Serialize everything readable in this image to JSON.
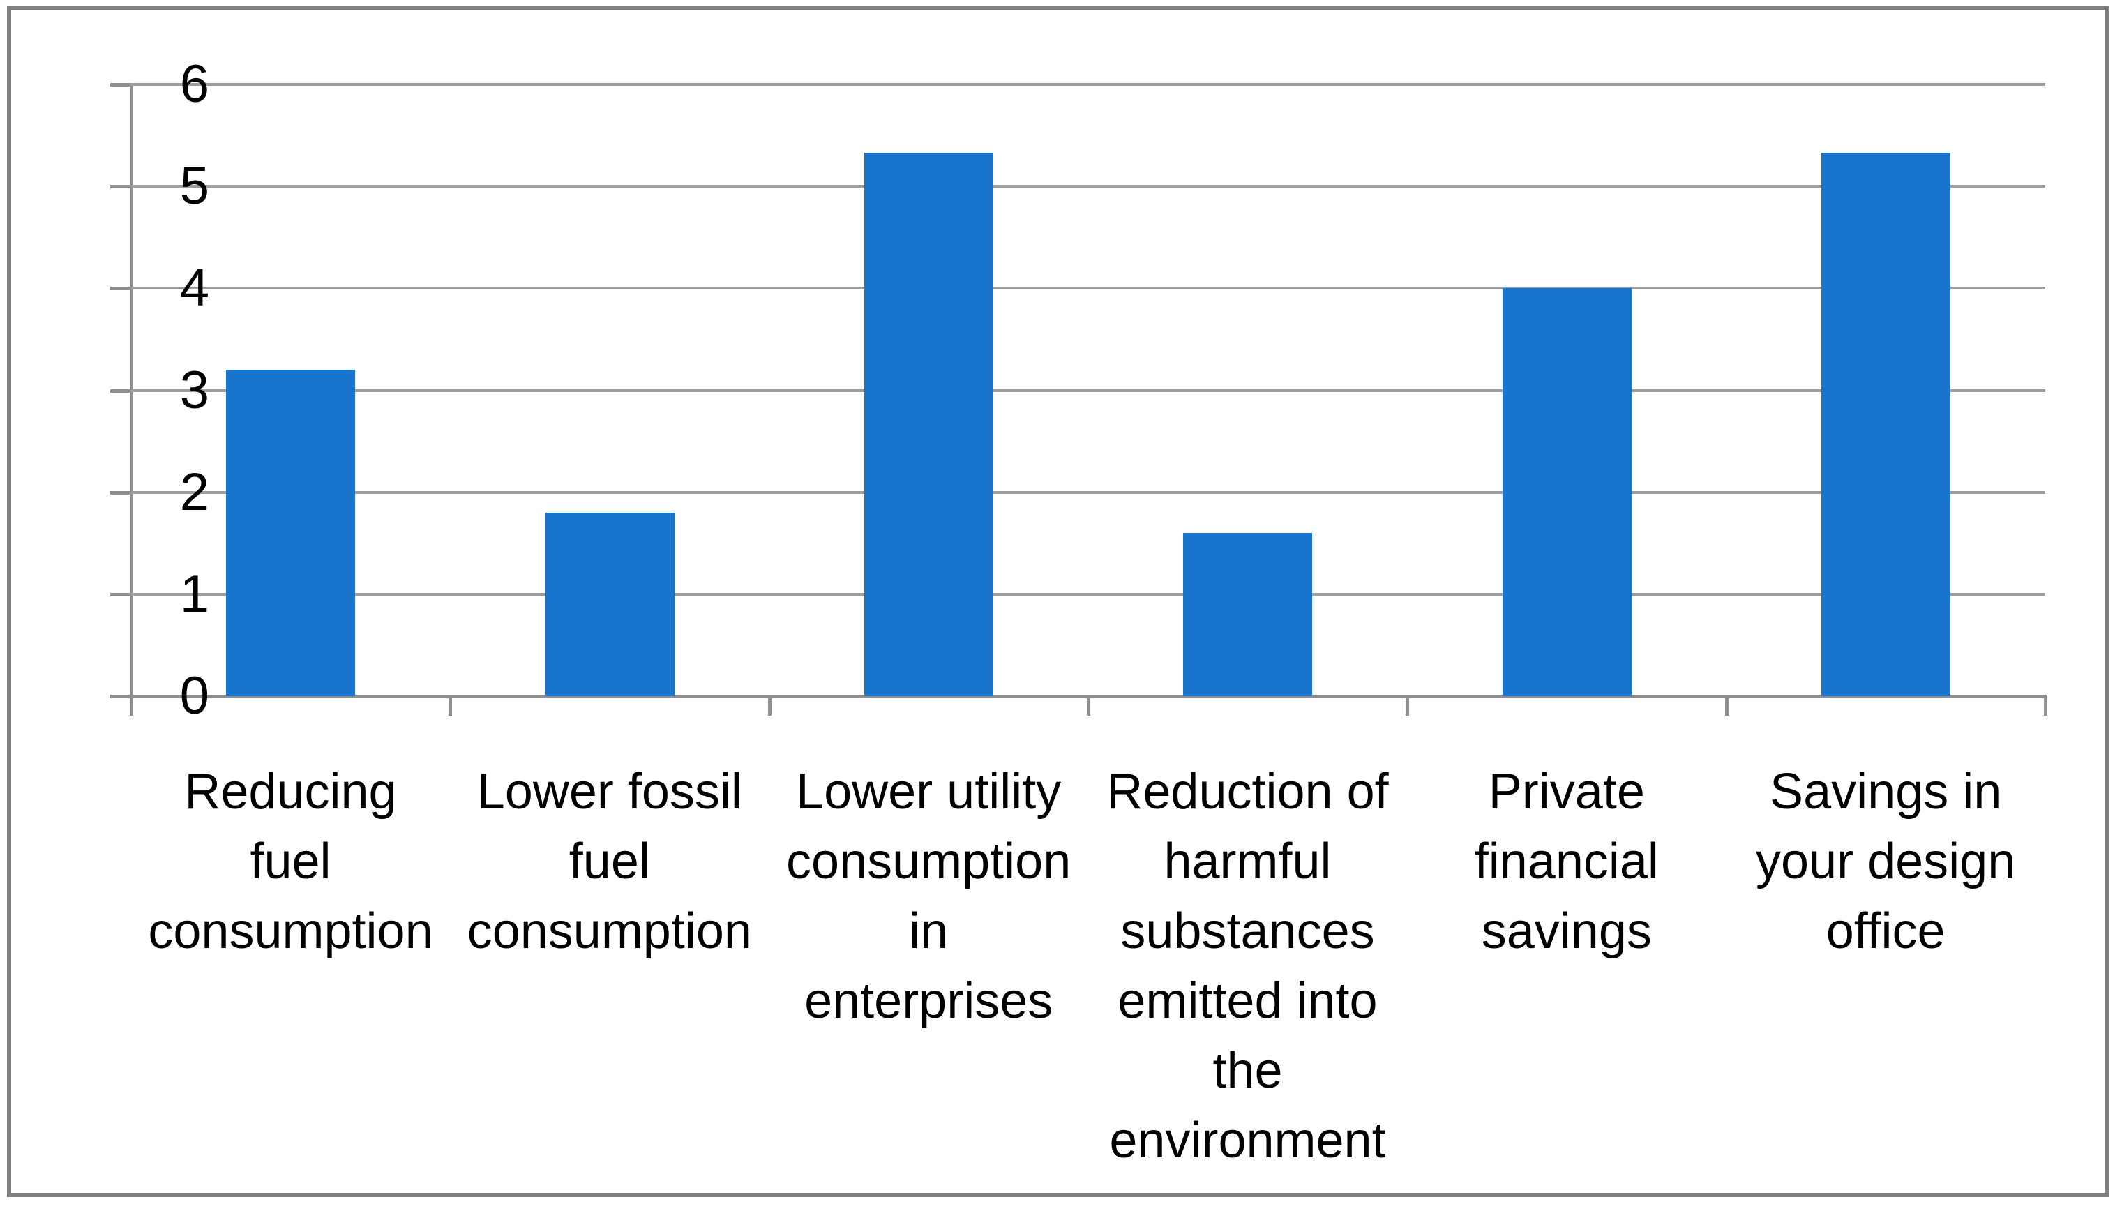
{
  "chart_data": {
    "type": "bar",
    "title": "",
    "xlabel": "",
    "ylabel": "",
    "categories": [
      "Reducing fuel consumption",
      "Lower fossil fuel consumption",
      "Lower utility consumption in enterprises",
      "Reduction of harmful substances emitted into the environment",
      "Private financial savings",
      "Savings in your design office"
    ],
    "categories_wrapped": [
      [
        "Reducing",
        "fuel",
        "consumption"
      ],
      [
        "Lower fossil",
        "fuel",
        "consumption"
      ],
      [
        "Lower utility",
        "consumption",
        "in",
        "enterprises"
      ],
      [
        "Reduction of",
        "harmful",
        "substances",
        "emitted into",
        "the",
        "environment"
      ],
      [
        "Private",
        "financial",
        "savings"
      ],
      [
        "Savings in",
        "your design",
        "office"
      ]
    ],
    "values": [
      3.2,
      1.8,
      5.33,
      1.6,
      4,
      5.33
    ],
    "y_ticks": [
      "0",
      "1",
      "2",
      "3",
      "4",
      "5",
      "6"
    ],
    "ylim": [
      0,
      6
    ],
    "grid": true,
    "legend_position": "none",
    "colors": {
      "bar": "#1874cd",
      "gridline": "#9d9d9d",
      "axis": "#8f8f8f",
      "border": "#7f7f7f",
      "text": "#000000",
      "background": "#ffffff"
    }
  }
}
